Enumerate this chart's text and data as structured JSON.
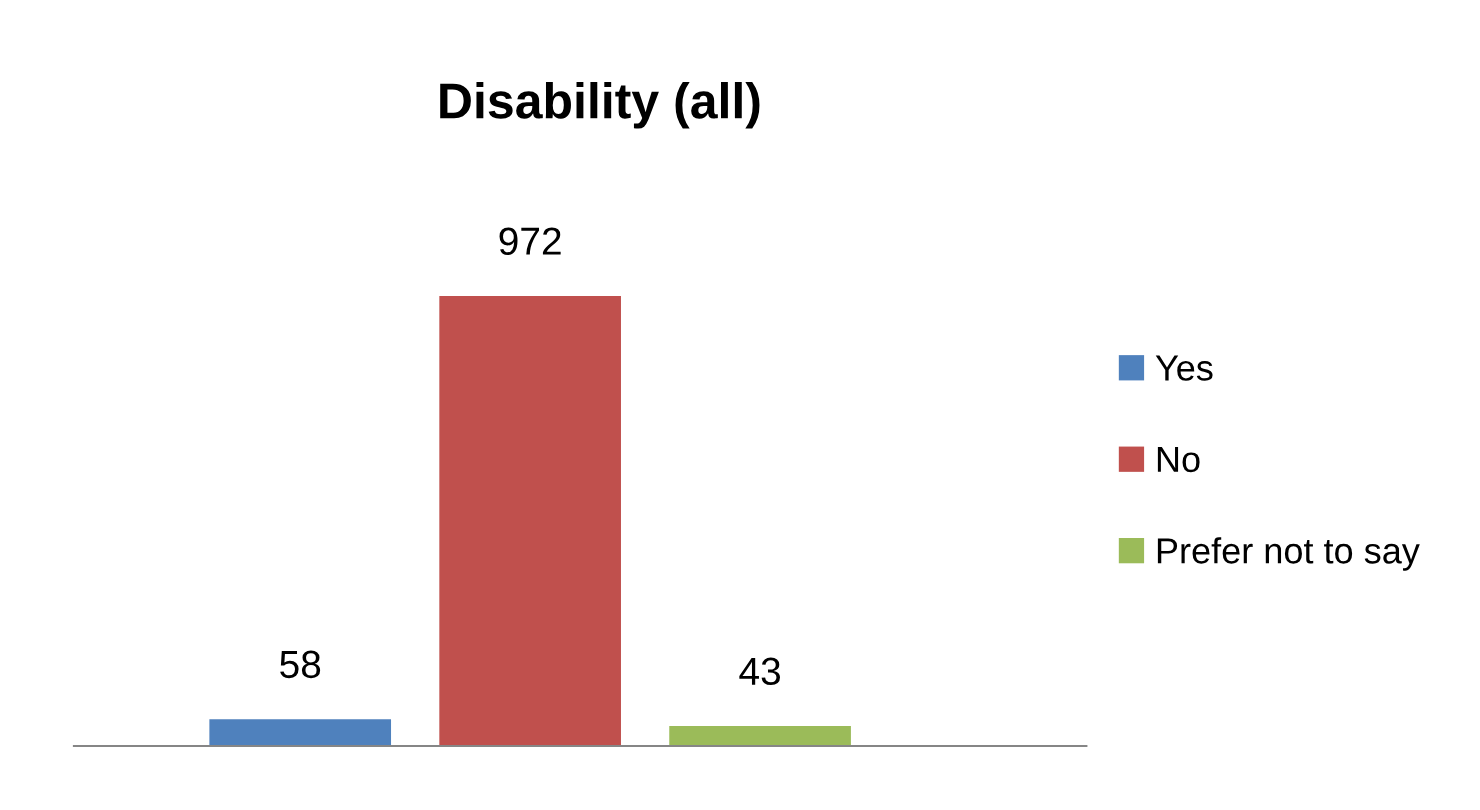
{
  "chart_data": {
    "type": "bar",
    "title": "Disability (all)",
    "categories": [
      null
    ],
    "series": [
      {
        "name": "Yes",
        "color": "#4f81bd",
        "values": [
          58
        ]
      },
      {
        "name": "No",
        "color": "#c0504d",
        "values": [
          972
        ]
      },
      {
        "name": "Prefer not to say",
        "color": "#9bbb59",
        "values": [
          43
        ]
      }
    ],
    "data_labels": true,
    "legend": "right",
    "grid": false
  }
}
